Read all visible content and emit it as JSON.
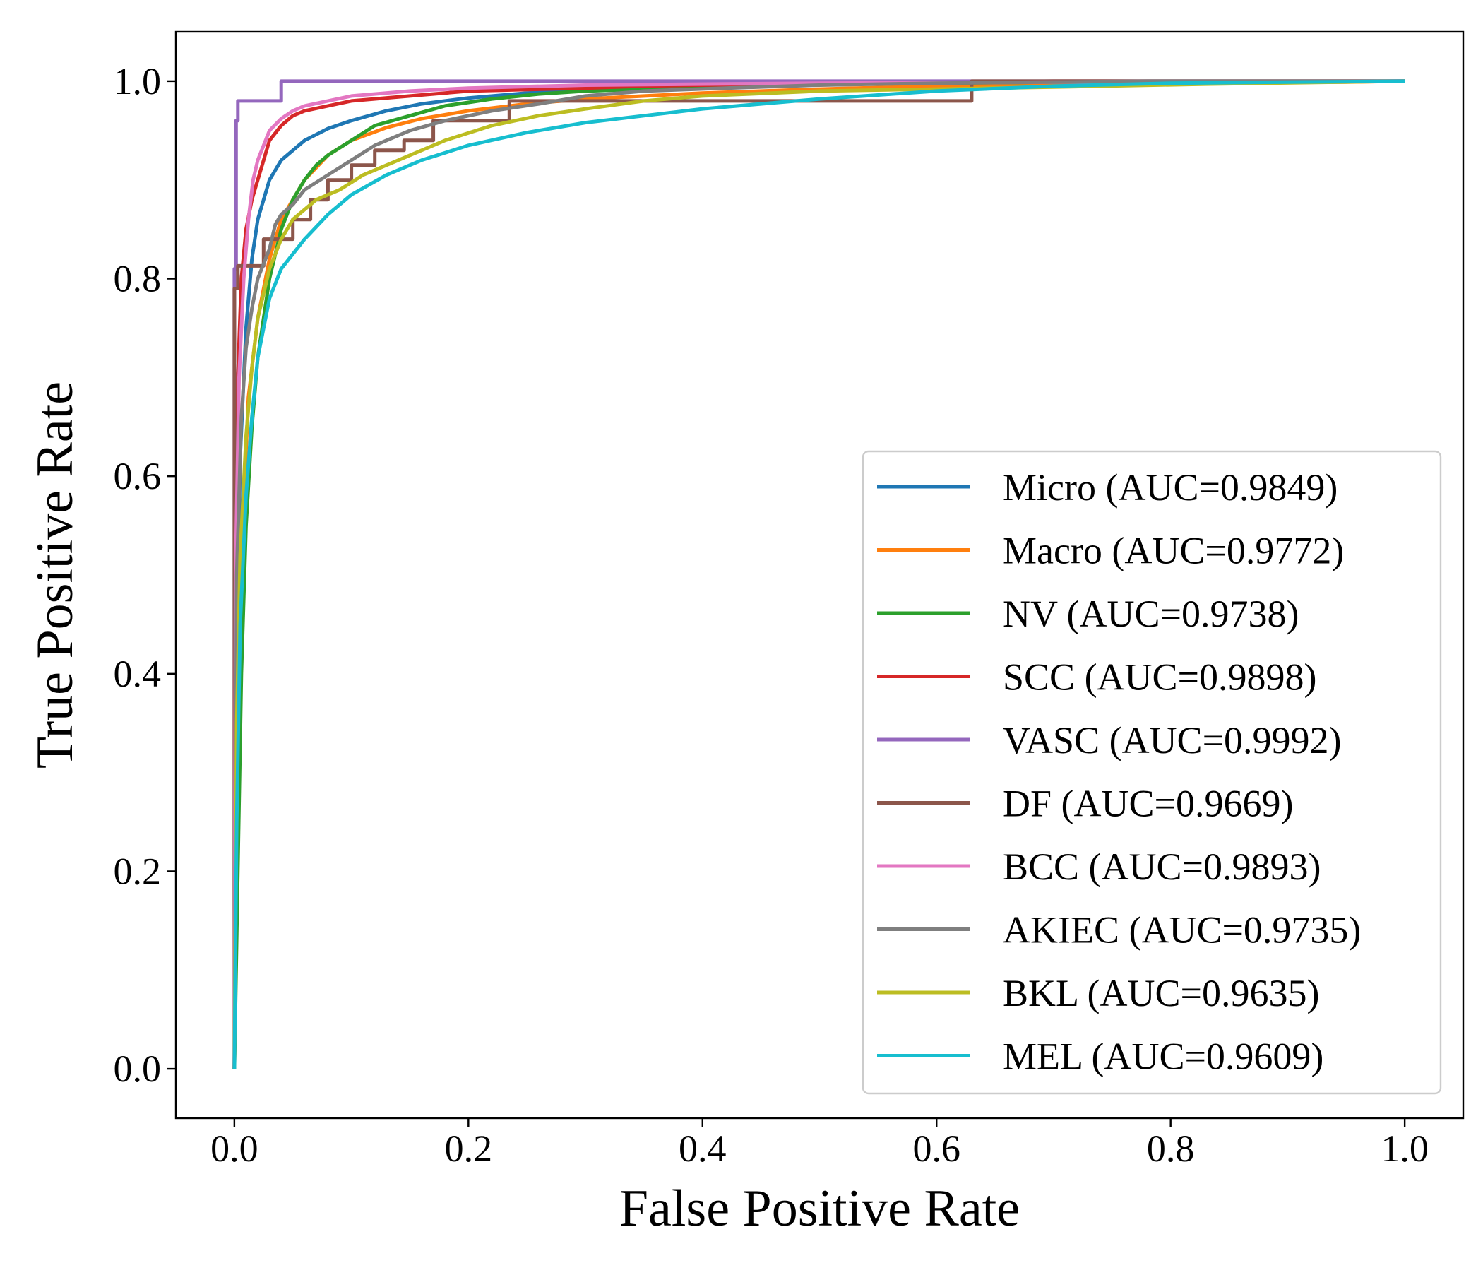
{
  "chart_data": {
    "type": "line",
    "title": "",
    "xlabel": "False Positive Rate",
    "ylabel": "True Positive Rate",
    "xlim": [
      -0.05,
      1.05
    ],
    "ylim": [
      -0.05,
      1.05
    ],
    "xticks": [
      "0.0",
      "0.2",
      "0.4",
      "0.6",
      "0.8",
      "1.0"
    ],
    "yticks": [
      "0.0",
      "0.2",
      "0.4",
      "0.6",
      "0.8",
      "1.0"
    ],
    "grid": false,
    "legend_position": "lower-right",
    "series": [
      {
        "name": "Micro (AUC=0.9849)",
        "color": "#1f77b4",
        "x": [
          0,
          0.002,
          0.005,
          0.01,
          0.015,
          0.02,
          0.03,
          0.04,
          0.06,
          0.08,
          0.1,
          0.13,
          0.16,
          0.2,
          0.25,
          0.3,
          0.4,
          0.5,
          0.6,
          0.8,
          1.0
        ],
        "y": [
          0,
          0.4,
          0.62,
          0.75,
          0.82,
          0.86,
          0.9,
          0.92,
          0.94,
          0.952,
          0.96,
          0.97,
          0.977,
          0.983,
          0.988,
          0.991,
          0.995,
          0.997,
          0.998,
          0.999,
          1.0
        ]
      },
      {
        "name": "Macro (AUC=0.9772)",
        "color": "#ff7f0e",
        "x": [
          0,
          0.003,
          0.007,
          0.012,
          0.02,
          0.03,
          0.04,
          0.06,
          0.08,
          0.1,
          0.13,
          0.16,
          0.2,
          0.25,
          0.3,
          0.4,
          0.5,
          0.6,
          0.8,
          0.95,
          1.0
        ],
        "y": [
          0,
          0.35,
          0.55,
          0.68,
          0.76,
          0.82,
          0.86,
          0.9,
          0.925,
          0.94,
          0.953,
          0.962,
          0.97,
          0.977,
          0.982,
          0.988,
          0.992,
          0.995,
          0.998,
          0.999,
          1.0
        ]
      },
      {
        "name": "NV (AUC=0.9738)",
        "color": "#2ca02c",
        "x": [
          0,
          0.003,
          0.006,
          0.01,
          0.015,
          0.02,
          0.03,
          0.04,
          0.05,
          0.06,
          0.07,
          0.08,
          0.1,
          0.12,
          0.15,
          0.18,
          0.22,
          0.26,
          0.3,
          0.4,
          0.5,
          0.7,
          1.0
        ],
        "y": [
          0,
          0.2,
          0.4,
          0.55,
          0.65,
          0.72,
          0.8,
          0.85,
          0.88,
          0.9,
          0.915,
          0.925,
          0.94,
          0.955,
          0.965,
          0.975,
          0.982,
          0.987,
          0.99,
          0.994,
          0.997,
          0.999,
          1.0
        ]
      },
      {
        "name": "SCC (AUC=0.9898)",
        "color": "#d62728",
        "x": [
          0,
          0.001,
          0.003,
          0.006,
          0.01,
          0.015,
          0.02,
          0.025,
          0.03,
          0.04,
          0.05,
          0.06,
          0.08,
          0.1,
          0.15,
          0.2,
          0.3,
          0.35,
          0.5,
          0.7,
          1.0
        ],
        "y": [
          0,
          0.5,
          0.7,
          0.8,
          0.85,
          0.88,
          0.9,
          0.92,
          0.94,
          0.955,
          0.965,
          0.97,
          0.975,
          0.98,
          0.985,
          0.99,
          0.993,
          0.995,
          0.998,
          1.0,
          1.0
        ]
      },
      {
        "name": "VASC (AUC=0.9992)",
        "color": "#9467bd",
        "x": [
          0,
          0,
          0.0015,
          0.0015,
          0.003,
          0.003,
          0.04,
          0.04,
          1.0
        ],
        "y": [
          0,
          0.81,
          0.81,
          0.96,
          0.96,
          0.98,
          0.98,
          1.0,
          1.0
        ]
      },
      {
        "name": "DF (AUC=0.9669)",
        "color": "#8c564b",
        "x": [
          0,
          0,
          0.003,
          0.003,
          0.025,
          0.025,
          0.05,
          0.05,
          0.065,
          0.065,
          0.08,
          0.08,
          0.1,
          0.1,
          0.12,
          0.12,
          0.145,
          0.145,
          0.17,
          0.17,
          0.235,
          0.235,
          0.395,
          0.395,
          0.63,
          0.63,
          1.0
        ],
        "y": [
          0,
          0.79,
          0.79,
          0.813,
          0.813,
          0.84,
          0.84,
          0.86,
          0.86,
          0.88,
          0.88,
          0.9,
          0.9,
          0.915,
          0.915,
          0.93,
          0.93,
          0.94,
          0.94,
          0.96,
          0.96,
          0.98,
          0.98,
          0.98,
          0.98,
          1.0,
          1.0
        ]
      },
      {
        "name": "BCC (AUC=0.9893)",
        "color": "#e377c2",
        "x": [
          0,
          0.001,
          0.004,
          0.008,
          0.012,
          0.016,
          0.02,
          0.025,
          0.03,
          0.04,
          0.05,
          0.06,
          0.08,
          0.1,
          0.15,
          0.2,
          0.3,
          0.5,
          0.7,
          1.0
        ],
        "y": [
          0,
          0.5,
          0.7,
          0.8,
          0.86,
          0.9,
          0.92,
          0.935,
          0.95,
          0.962,
          0.97,
          0.975,
          0.98,
          0.985,
          0.99,
          0.993,
          0.996,
          0.998,
          0.999,
          1.0
        ]
      },
      {
        "name": "AKIEC (AUC=0.9735)",
        "color": "#7f7f7f",
        "x": [
          0,
          0.002,
          0.006,
          0.01,
          0.015,
          0.02,
          0.03,
          0.035,
          0.04,
          0.05,
          0.06,
          0.08,
          0.1,
          0.12,
          0.15,
          0.18,
          0.22,
          0.26,
          0.3,
          0.35,
          0.42,
          0.5,
          0.6,
          0.78,
          1.0
        ],
        "y": [
          0,
          0.5,
          0.66,
          0.73,
          0.77,
          0.8,
          0.83,
          0.855,
          0.865,
          0.875,
          0.89,
          0.905,
          0.92,
          0.935,
          0.95,
          0.96,
          0.97,
          0.977,
          0.985,
          0.99,
          0.993,
          0.996,
          0.998,
          1.0,
          1.0
        ]
      },
      {
        "name": "BKL (AUC=0.9635)",
        "color": "#bcbd22",
        "x": [
          0,
          0.002,
          0.005,
          0.01,
          0.015,
          0.02,
          0.03,
          0.04,
          0.05,
          0.07,
          0.09,
          0.11,
          0.14,
          0.18,
          0.22,
          0.26,
          0.3,
          0.35,
          0.4,
          0.5,
          0.6,
          0.7,
          0.83,
          1.0
        ],
        "y": [
          0,
          0.35,
          0.52,
          0.64,
          0.71,
          0.76,
          0.81,
          0.84,
          0.86,
          0.88,
          0.89,
          0.905,
          0.92,
          0.94,
          0.955,
          0.965,
          0.972,
          0.98,
          0.985,
          0.99,
          0.992,
          0.994,
          0.997,
          1.0
        ]
      },
      {
        "name": "MEL (AUC=0.9609)",
        "color": "#17becf",
        "x": [
          0,
          0.002,
          0.005,
          0.01,
          0.015,
          0.02,
          0.03,
          0.04,
          0.06,
          0.08,
          0.1,
          0.13,
          0.16,
          0.2,
          0.25,
          0.3,
          0.35,
          0.4,
          0.5,
          0.6,
          0.7,
          0.8,
          1.0
        ],
        "y": [
          0,
          0.25,
          0.45,
          0.58,
          0.66,
          0.72,
          0.78,
          0.81,
          0.84,
          0.865,
          0.885,
          0.905,
          0.92,
          0.935,
          0.948,
          0.958,
          0.965,
          0.972,
          0.982,
          0.99,
          0.995,
          0.998,
          1.0
        ]
      }
    ]
  }
}
